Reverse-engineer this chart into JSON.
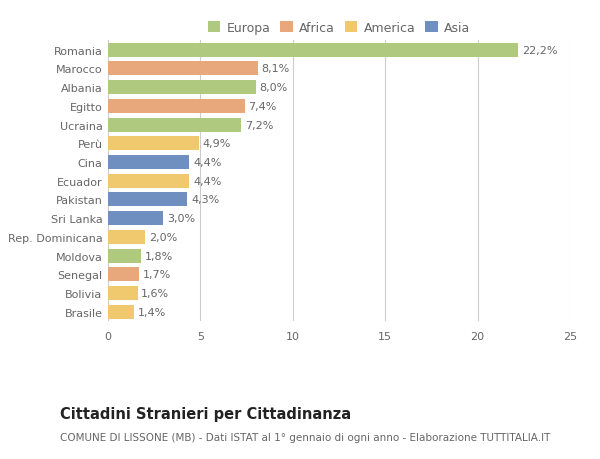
{
  "categories": [
    "Brasile",
    "Bolivia",
    "Senegal",
    "Moldova",
    "Rep. Dominicana",
    "Sri Lanka",
    "Pakistan",
    "Ecuador",
    "Cina",
    "Perù",
    "Ucraina",
    "Egitto",
    "Albania",
    "Marocco",
    "Romania"
  ],
  "values": [
    1.4,
    1.6,
    1.7,
    1.8,
    2.0,
    3.0,
    4.3,
    4.4,
    4.4,
    4.9,
    7.2,
    7.4,
    8.0,
    8.1,
    22.2
  ],
  "labels": [
    "1,4%",
    "1,6%",
    "1,7%",
    "1,8%",
    "2,0%",
    "3,0%",
    "4,3%",
    "4,4%",
    "4,4%",
    "4,9%",
    "7,2%",
    "7,4%",
    "8,0%",
    "8,1%",
    "22,2%"
  ],
  "continents": [
    "America",
    "America",
    "Africa",
    "Europa",
    "America",
    "Asia",
    "Asia",
    "America",
    "Asia",
    "America",
    "Europa",
    "Africa",
    "Europa",
    "Africa",
    "Europa"
  ],
  "continent_colors": {
    "Europa": "#afc97e",
    "Africa": "#e8a87c",
    "America": "#f0c96e",
    "Asia": "#6e8fbf"
  },
  "legend_order": [
    "Europa",
    "Africa",
    "America",
    "Asia"
  ],
  "legend_colors": [
    "#afc97e",
    "#e8a87c",
    "#f0c96e",
    "#6e8fbf"
  ],
  "title": "Cittadini Stranieri per Cittadinanza",
  "subtitle": "COMUNE DI LISSONE (MB) - Dati ISTAT al 1° gennaio di ogni anno - Elaborazione TUTTITALIA.IT",
  "xlim": [
    0,
    25
  ],
  "xticks": [
    0,
    5,
    10,
    15,
    20,
    25
  ],
  "bar_height": 0.75,
  "background_color": "#ffffff",
  "grid_color": "#cccccc",
  "label_fontsize": 8.0,
  "tick_fontsize": 8.0,
  "title_fontsize": 10.5,
  "subtitle_fontsize": 7.5
}
